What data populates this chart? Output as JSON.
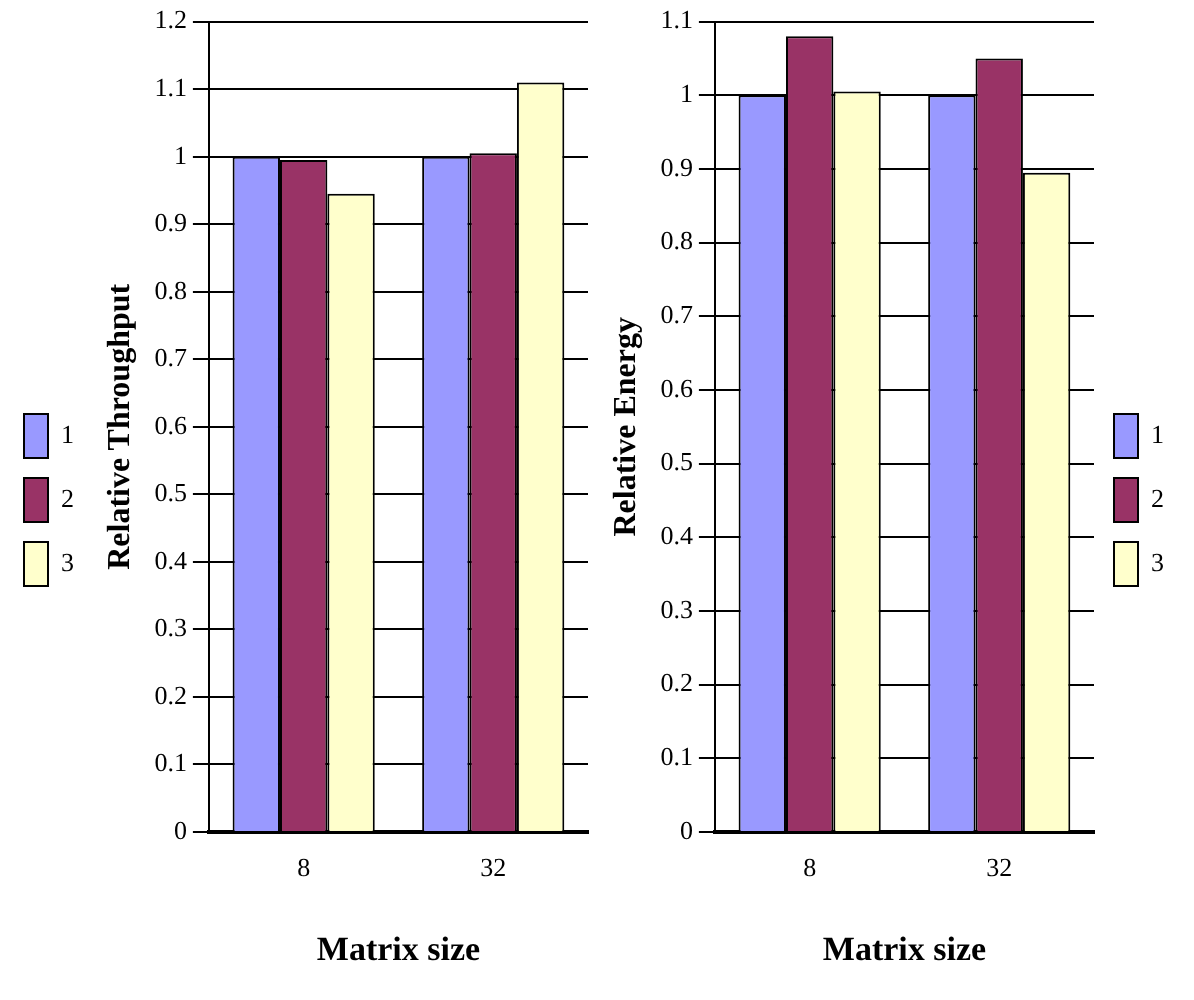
{
  "chart_data": [
    {
      "type": "bar",
      "xlabel": "Matrix size",
      "ylabel": "Relative Throughput",
      "categories": [
        "8",
        "32"
      ],
      "series": [
        {
          "name": "1",
          "color": "#9999ff",
          "values": [
            1,
            1
          ]
        },
        {
          "name": "2",
          "color": "#993366",
          "values": [
            0.995,
            1.005
          ]
        },
        {
          "name": "3",
          "color": "#ffffcc",
          "values": [
            0.945,
            1.11
          ]
        }
      ],
      "ylim": [
        0,
        1.2
      ],
      "yticks": [
        0,
        0.1,
        0.2,
        0.3,
        0.4,
        0.5,
        0.6,
        0.7,
        0.8,
        0.9,
        1,
        1.1,
        1.2
      ],
      "grid": "y",
      "legend": "left"
    },
    {
      "type": "bar",
      "xlabel": "Matrix size",
      "ylabel": "Relative Energy",
      "categories": [
        "8",
        "32"
      ],
      "series": [
        {
          "name": "1",
          "color": "#9999ff",
          "values": [
            1,
            1
          ]
        },
        {
          "name": "2",
          "color": "#993366",
          "values": [
            1.08,
            1.05
          ]
        },
        {
          "name": "3",
          "color": "#ffffcc",
          "values": [
            1.005,
            0.895
          ]
        }
      ],
      "ylim": [
        0,
        1.1
      ],
      "yticks": [
        0,
        0.1,
        0.2,
        0.3,
        0.4,
        0.5,
        0.6,
        0.7,
        0.8,
        0.9,
        1,
        1.1
      ],
      "grid": "y",
      "legend": "right"
    }
  ]
}
